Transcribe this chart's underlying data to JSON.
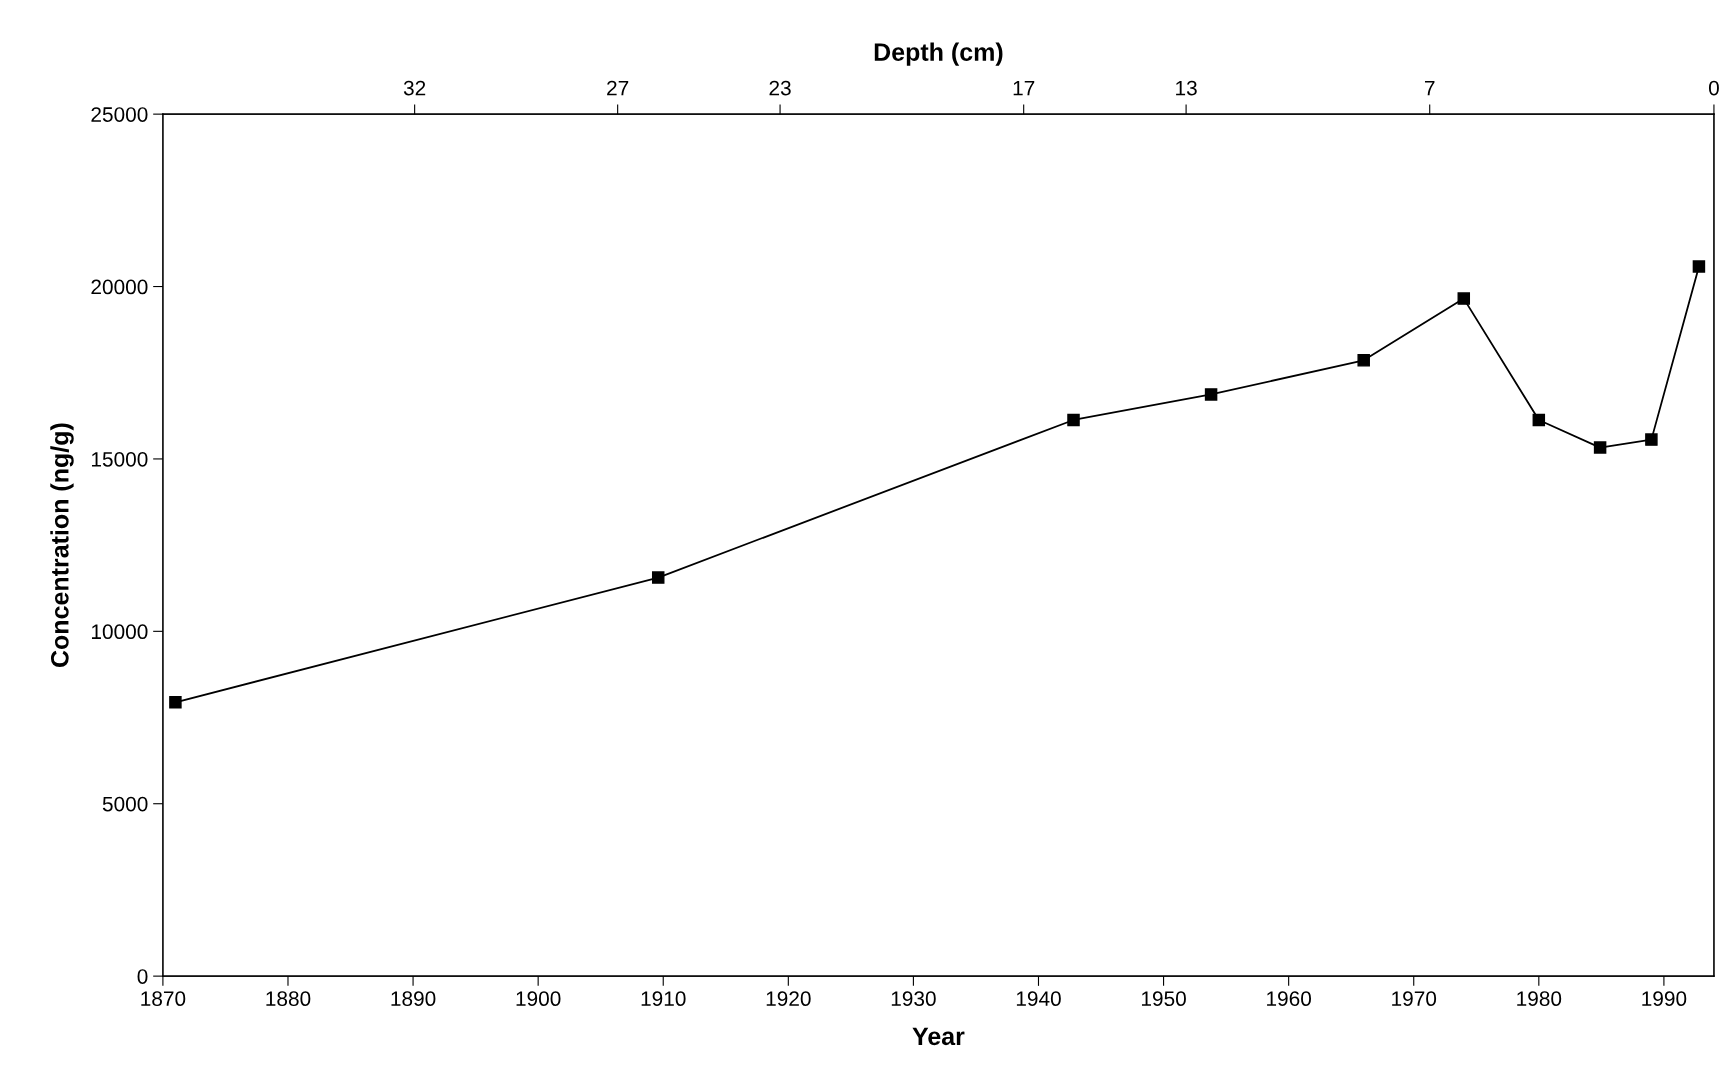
{
  "chart_data": {
    "type": "line",
    "xlabel": "Year",
    "ylabel": "Concentration (ng/g)",
    "x2label": "Depth (cm)",
    "x": [
      1871,
      1909.6,
      1942.8,
      1953.8,
      1966,
      1974,
      1980,
      1984.9,
      1989,
      1992.8
    ],
    "series": [
      {
        "color": "#000000",
        "values": [
          7940,
          11560,
          16130,
          16870,
          17860,
          19650,
          16130,
          15330,
          15560,
          20580
        ]
      }
    ],
    "marker": "square",
    "line_style": "solid",
    "grid": false,
    "legend": false,
    "xlim": [
      1870,
      1994
    ],
    "xticks": [
      1870,
      1880,
      1890,
      1900,
      1910,
      1920,
      1930,
      1940,
      1950,
      1960,
      1970,
      1980,
      1990
    ],
    "ylim": [
      0,
      25000
    ],
    "yticks": [
      0,
      5000,
      10000,
      15000,
      20000,
      25000
    ],
    "x2lim": [
      38.2,
      0
    ],
    "x2ticks": [
      32,
      27,
      23,
      17,
      13,
      7,
      0
    ]
  }
}
